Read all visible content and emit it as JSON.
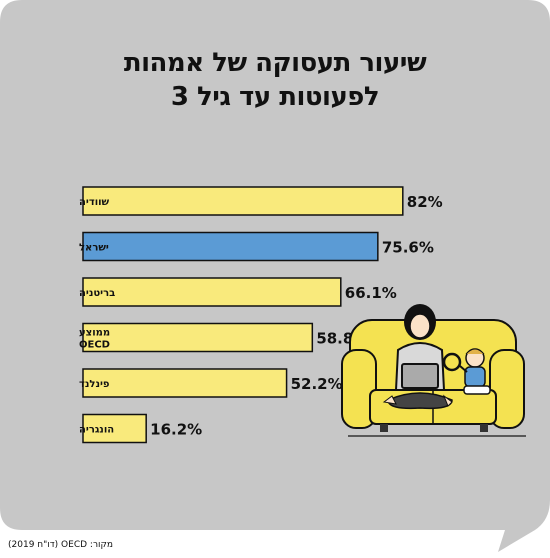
{
  "title_line1": "שיעור תעסוקה של אמהות",
  "title_line2": "לפעוטות עד גיל 3",
  "source": "מקור: OECD (דו\"ח 2019)",
  "colors": {
    "background": "#c7c7c7",
    "bar_default": "#f9ea7c",
    "bar_highlight": "#5b9bd5",
    "bar_stroke": "#111111",
    "illustration_sofa": "#f4e251"
  },
  "chart_data": {
    "type": "bar",
    "orientation": "horizontal",
    "categories": [
      "שוודיה",
      "ישראל",
      "בריטניה",
      "ממוצע OECD",
      "פינלנד",
      "הונגריה"
    ],
    "values": [
      82,
      75.6,
      66.1,
      58.8,
      52.2,
      16.2
    ],
    "value_labels": [
      "82%",
      "75.6%",
      "66.1%",
      "58.8%",
      "52.2%",
      "16.2%"
    ],
    "highlight_index": 1,
    "xlim": [
      0,
      100
    ]
  },
  "illustration": "woman-with-laptop-and-child-on-sofa"
}
